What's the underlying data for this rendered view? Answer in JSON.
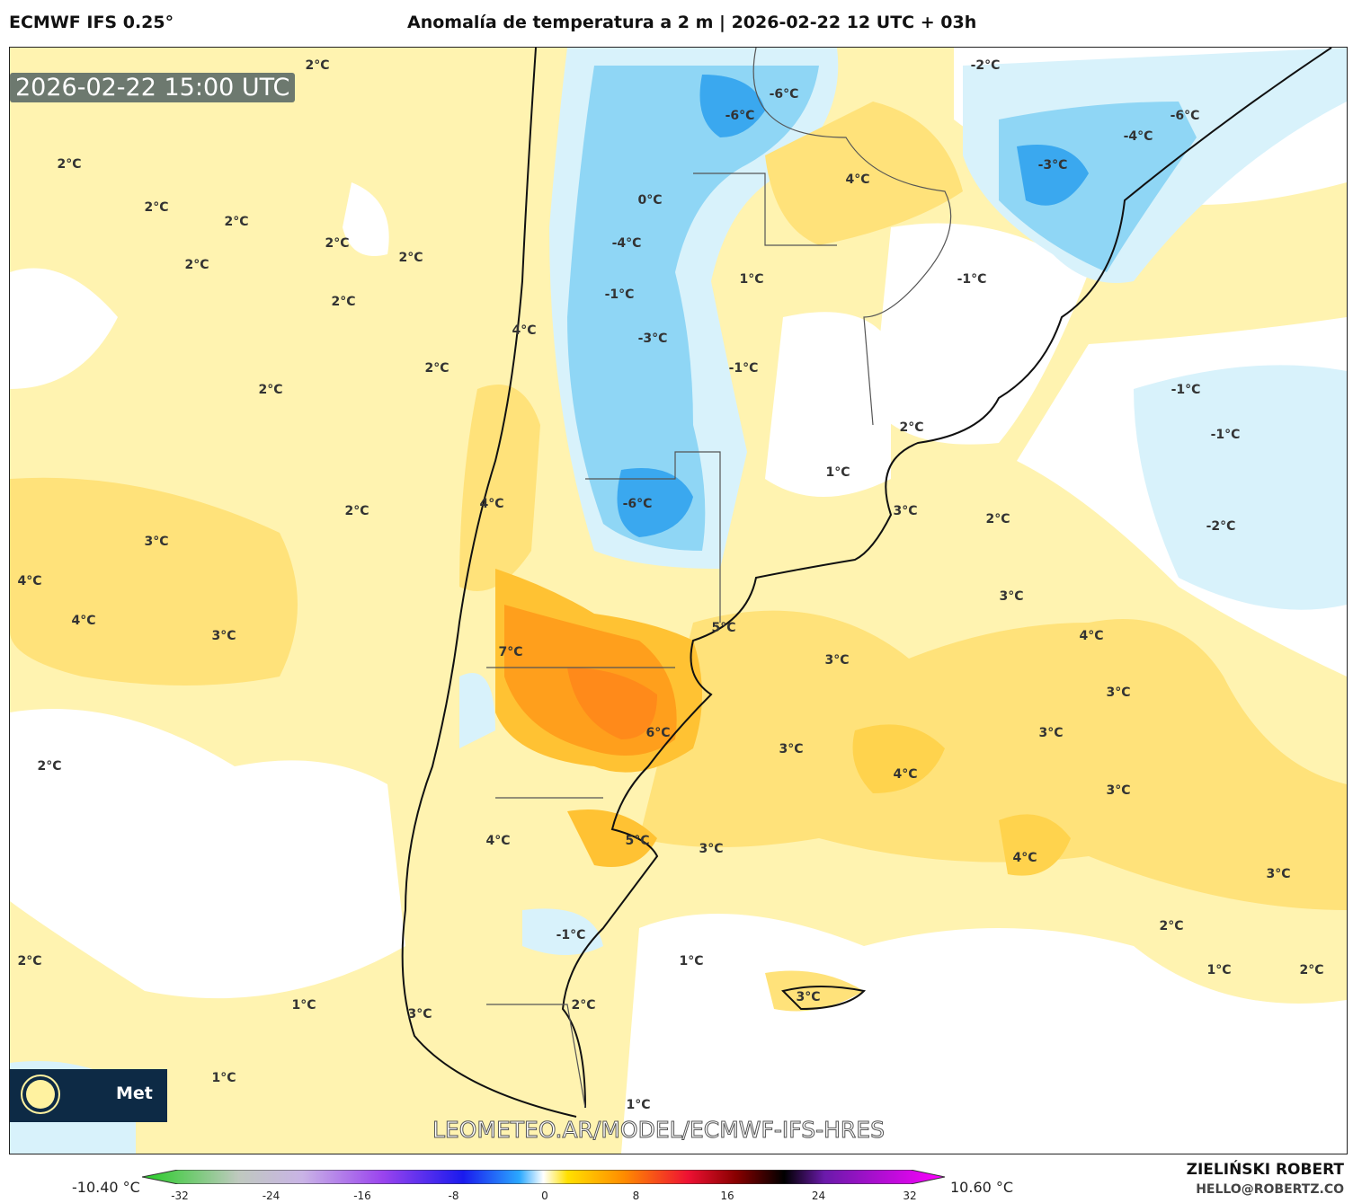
{
  "header": {
    "model": "ECMWF IFS 0.25°",
    "title": "Anomalía de temperatura a 2 m | 2026-02-22 12 UTC + 03h"
  },
  "map": {
    "timestamp": "2026-02-22 15:00 UTC",
    "watermark": "LEOMETEO.AR/MODEL/ECMWF-IFS-HRES",
    "logo_text": "Met",
    "logo_icon": "sun-icon",
    "contour_labels": [
      "2°C",
      "2°C",
      "2°C",
      "2°C",
      "2°C",
      "2°C",
      "2°C",
      "2°C",
      "2°C",
      "2°C",
      "3°C",
      "4°C",
      "4°C",
      "3°C",
      "2°C",
      "2°C",
      "1°C",
      "1°C",
      "0°C",
      "-4°C",
      "-1°C",
      "4°C",
      "-3°C",
      "-1°C",
      "-6°C",
      "-6°C",
      "-6°C",
      "4°C",
      "1°C",
      "-1°C",
      "2°C",
      "1°C",
      "3°C",
      "2°C",
      "-2°C",
      "-6°C",
      "-4°C",
      "-3°C",
      "-1°C",
      "-1°C",
      "-2°C",
      "3°C",
      "4°C",
      "3°C",
      "3°C",
      "3°C",
      "4°C",
      "3°C",
      "4°C",
      "3°C",
      "2°C",
      "1°C",
      "2°C",
      "7°C",
      "4°C",
      "5°C",
      "6°C",
      "3°C",
      "4°C",
      "5°C",
      "3°C",
      "-1°C",
      "1°C",
      "2°C",
      "3°C",
      "2°C",
      "1°C",
      "3°C"
    ]
  },
  "colorbar": {
    "min_label": "-10.40 °C",
    "max_label": "10.60 °C",
    "ticks": [
      "-32",
      "-24",
      "-16",
      "-8",
      "0",
      "8",
      "16",
      "24",
      "32"
    ],
    "stops": [
      [
        "#22cc22",
        0
      ],
      [
        "#bfc9bf",
        0.12
      ],
      [
        "#c9b3e6",
        0.2
      ],
      [
        "#9a44ee",
        0.3
      ],
      [
        "#1a1aee",
        0.4
      ],
      [
        "#2aa8ff",
        0.47
      ],
      [
        "#ffffff",
        0.5
      ],
      [
        "#ffe000",
        0.53
      ],
      [
        "#ff8c00",
        0.6
      ],
      [
        "#ee1133",
        0.68
      ],
      [
        "#880000",
        0.74
      ],
      [
        "#000000",
        0.8
      ],
      [
        "#6a1aaa",
        0.85
      ],
      [
        "#ff00ff",
        1
      ]
    ]
  },
  "credit": {
    "name": "ZIELIŃSKI ROBERT",
    "email": "HELLO@ROBERTZ.CO"
  }
}
